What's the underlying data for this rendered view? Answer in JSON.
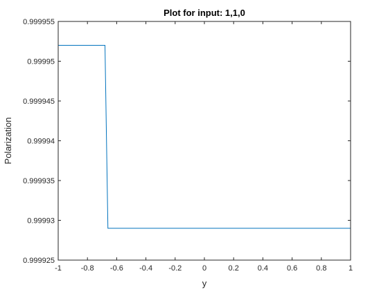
{
  "chart_data": {
    "type": "line",
    "title": "Plot for input: 1,1,0",
    "xlabel": "y",
    "ylabel": "Polarization",
    "xlim": [
      -1,
      1
    ],
    "ylim": [
      0.999925,
      0.999955
    ],
    "xticks": [
      -1,
      -0.8,
      -0.6,
      -0.4,
      -0.2,
      0,
      0.2,
      0.4,
      0.6,
      0.8,
      1
    ],
    "xtick_labels": [
      "-1",
      "-0.8",
      "-0.6",
      "-0.4",
      "-0.2",
      "0",
      "0.2",
      "0.4",
      "0.6",
      "0.8",
      "1"
    ],
    "yticks": [
      0.999925,
      0.99993,
      0.999935,
      0.99994,
      0.999945,
      0.99995,
      0.999955
    ],
    "ytick_labels": [
      "0.999925",
      "0.99993",
      "0.999935",
      "0.99994",
      "0.999945",
      "0.99995",
      "0.999955"
    ],
    "grid": false,
    "series": [
      {
        "color": "#0072bd",
        "x": [
          -1,
          -0.68,
          -0.66,
          1
        ],
        "y": [
          0.999952,
          0.999952,
          0.999929,
          0.999929
        ]
      }
    ]
  }
}
